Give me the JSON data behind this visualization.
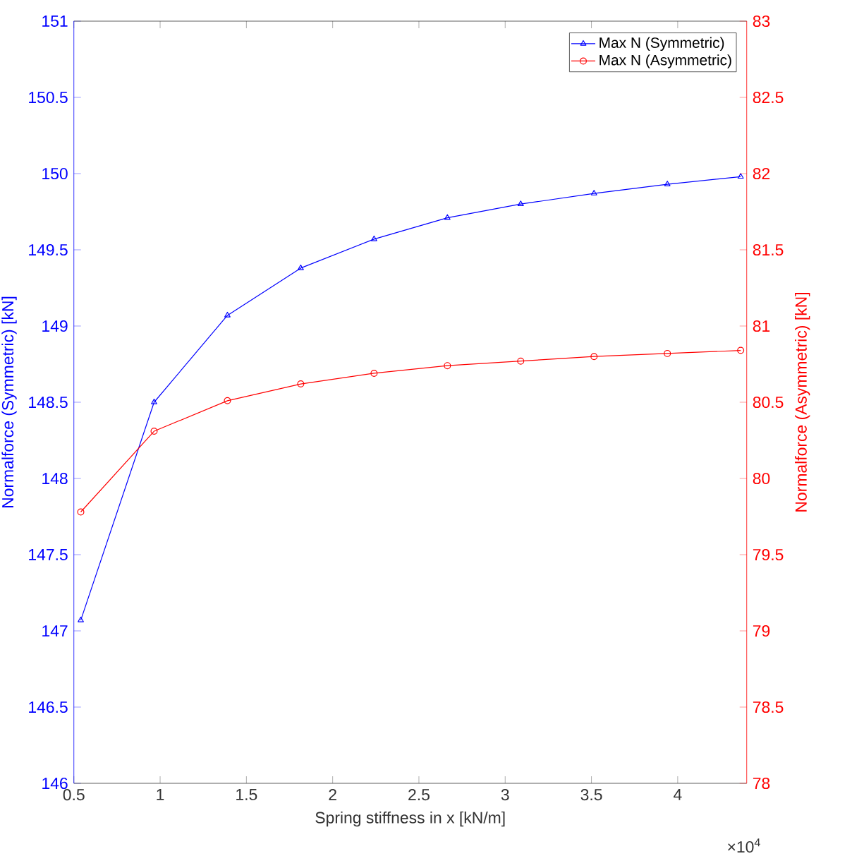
{
  "chart_data": {
    "type": "line",
    "xlabel": "Spring stiffness in x [kN/m]",
    "ylabel": "Normalforce (Symmetric) [kN]",
    "y2label": "Normalforce (Asymmetric) [kN]",
    "annotations": [
      "×10$^{4}$"
    ],
    "x": [
      0.54,
      0.965,
      1.39,
      1.815,
      2.24,
      2.665,
      3.09,
      3.515,
      3.94,
      4.365
    ],
    "series": [
      {
        "name": "Max N (Symmetric)",
        "color": "#0000ff",
        "marker": "triangle",
        "values": [
          147.07,
          148.5,
          149.07,
          149.38,
          149.57,
          149.71,
          149.8,
          149.87,
          149.93,
          149.98
        ]
      },
      {
        "name": "Max N (Asymmetric)",
        "color": "#ff0000",
        "marker": "circle",
        "axis": "y2",
        "values": [
          79.78,
          80.31,
          80.51,
          80.62,
          80.69,
          80.74,
          80.77,
          80.8,
          80.82,
          80.84
        ]
      }
    ],
    "xlim": [
      0.5,
      4.4
    ],
    "xticks": [
      0.5,
      1,
      1.5,
      2,
      2.5,
      3,
      3.5,
      4
    ],
    "ylim": [
      146,
      151
    ],
    "yticks": [
      146,
      146.5,
      147,
      147.5,
      148,
      148.5,
      149,
      149.5,
      150,
      150.5,
      151
    ],
    "y2lim": [
      78,
      83
    ],
    "y2ticks": [
      78,
      78.5,
      79,
      79.5,
      80,
      80.5,
      81,
      81.5,
      82,
      82.5,
      83
    ],
    "legend": "top right",
    "grid": false,
    "line_style": "solid"
  }
}
